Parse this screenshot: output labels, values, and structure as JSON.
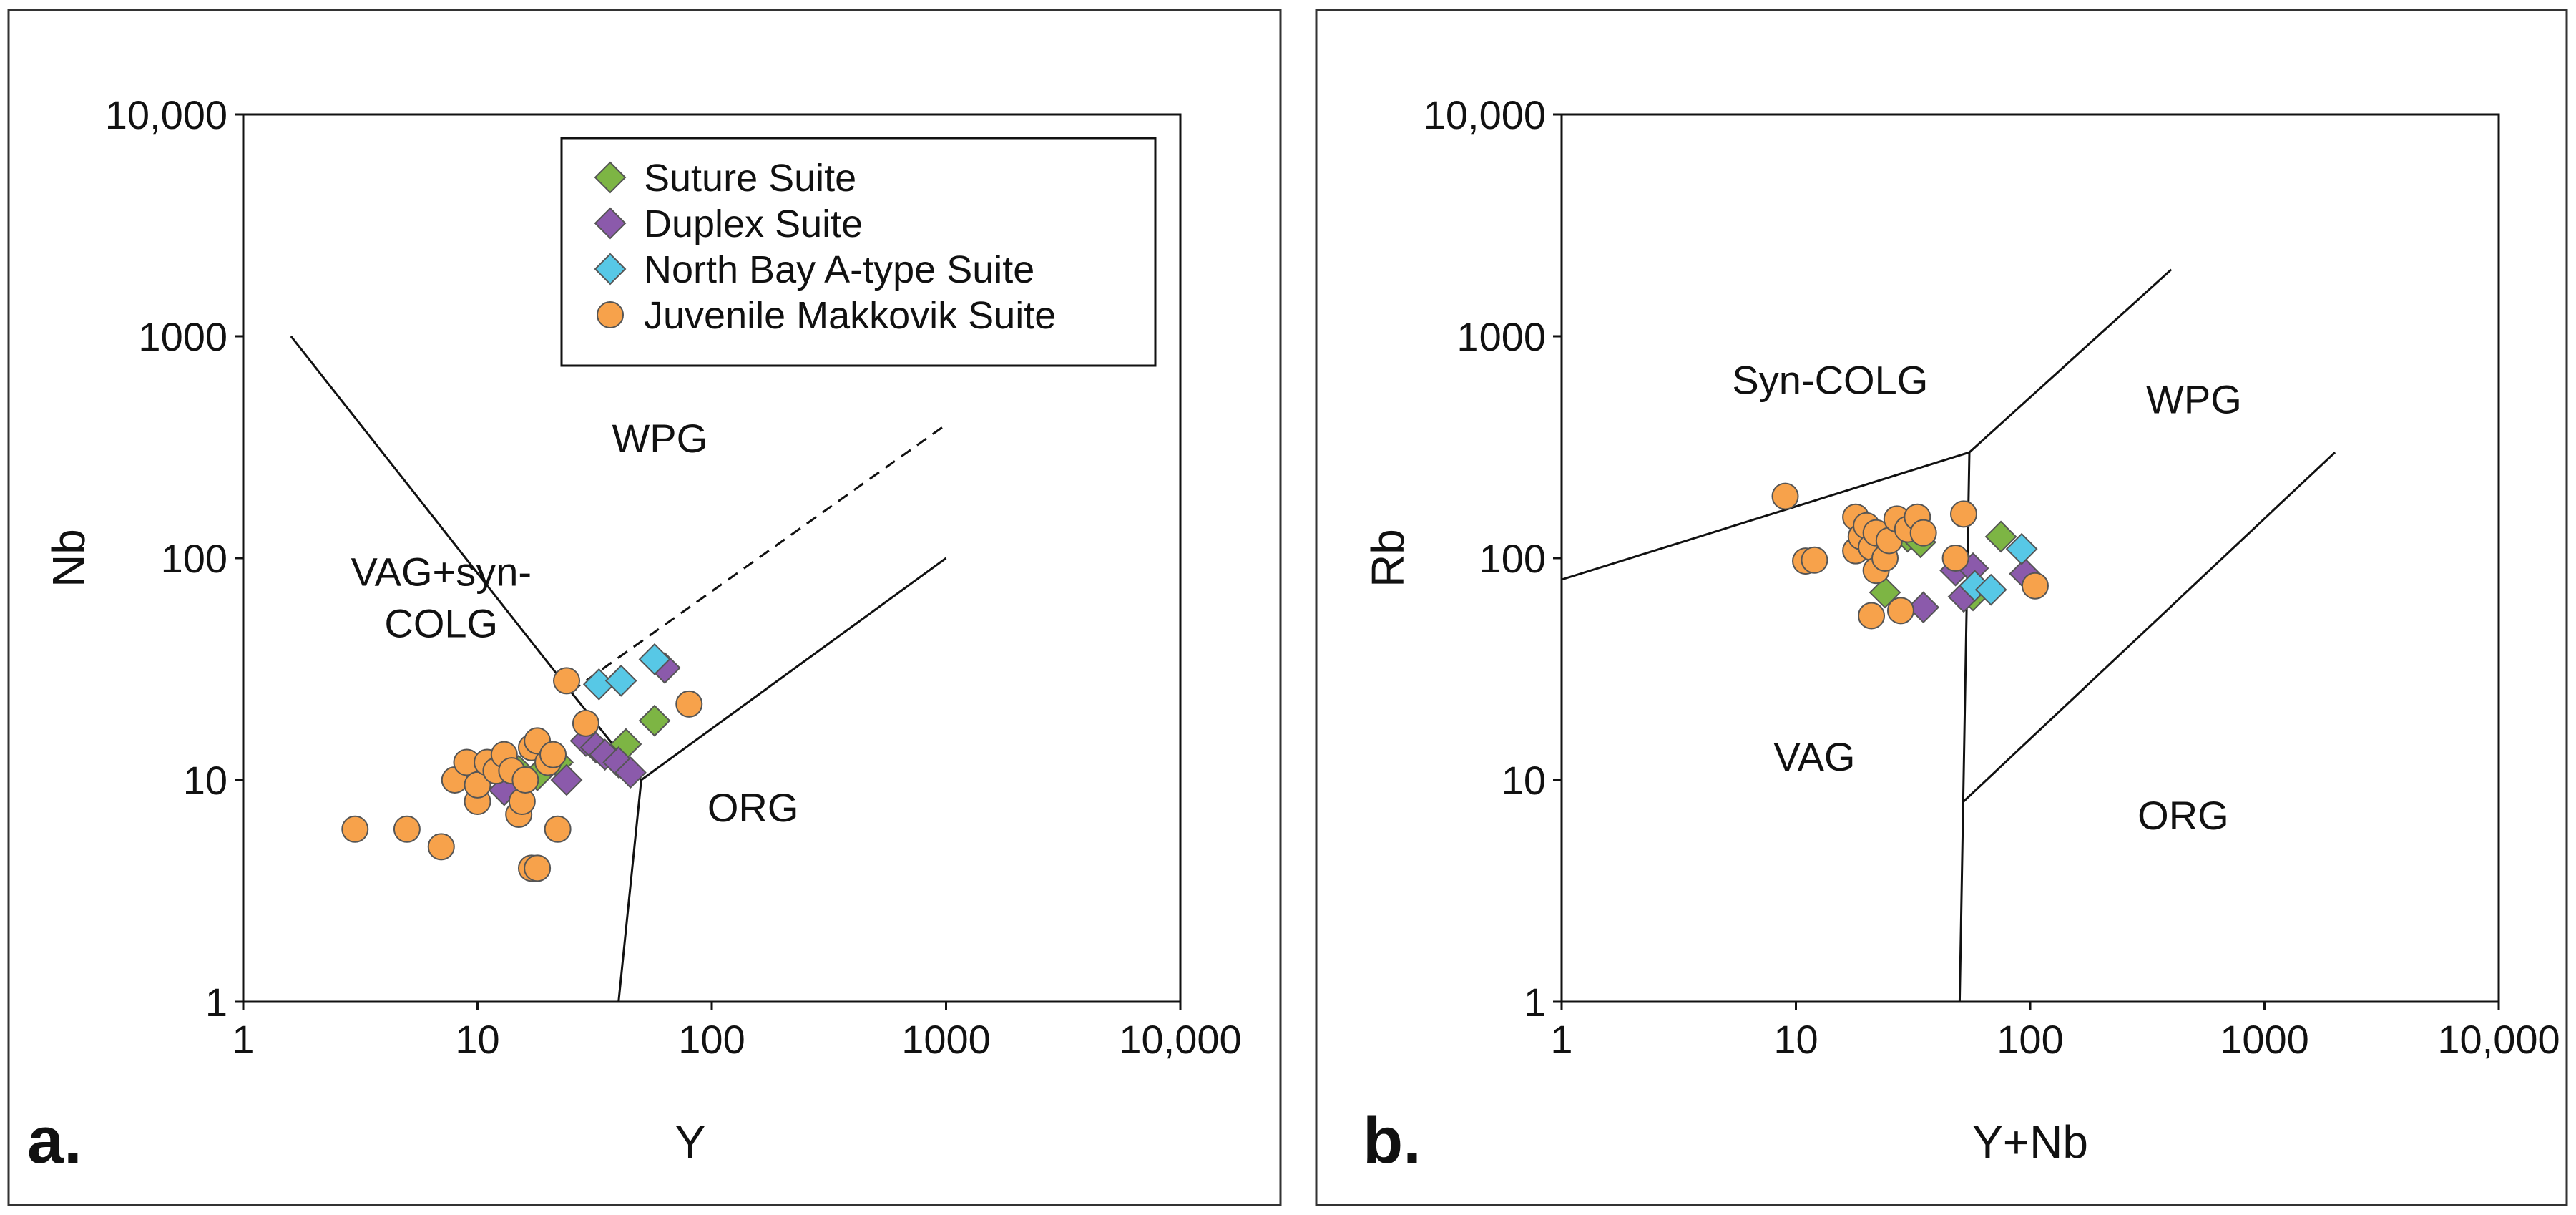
{
  "colors": {
    "suture": "#7db544",
    "duplex": "#8b5aab",
    "northbay": "#57c8e6",
    "juvenile": "#f7a24b"
  },
  "chart_data": [
    {
      "type": "scatter",
      "panel_label": "a.",
      "xlabel": "Y",
      "ylabel": "Nb",
      "xscale": "log",
      "yscale": "log",
      "xlim": [
        1,
        10000
      ],
      "ylim": [
        1,
        10000
      ],
      "x_tick_labels": [
        "1",
        "10",
        "100",
        "1000",
        "10,000"
      ],
      "y_tick_labels": [
        "1",
        "10",
        "100",
        "1000",
        "10,000"
      ],
      "legend": {
        "placement": "top-right",
        "entries": [
          {
            "name": "Suture Suite",
            "marker": "diamond",
            "color_key": "suture"
          },
          {
            "name": "Duplex Suite",
            "marker": "diamond",
            "color_key": "duplex"
          },
          {
            "name": "North Bay A-type Suite",
            "marker": "diamond",
            "color_key": "northbay"
          },
          {
            "name": "Juvenile Makkovik Suite",
            "marker": "circle",
            "color_key": "juvenile"
          }
        ]
      },
      "region_labels": [
        {
          "text": "WPG",
          "x": 60,
          "y": 300
        },
        {
          "text": "VAG+syn-",
          "x": 7,
          "y": 75
        },
        {
          "text": "COLG",
          "x": 7,
          "y": 44
        },
        {
          "text": "ORG",
          "x": 150,
          "y": 6.5
        }
      ],
      "boundaries": [
        {
          "style": "solid",
          "points": [
            [
              1.6,
              1000
            ],
            [
              25,
              25
            ],
            [
              50,
              10
            ],
            [
              40,
              1
            ]
          ]
        },
        {
          "style": "solid",
          "points": [
            [
              50,
              10
            ],
            [
              1000,
              100
            ]
          ]
        },
        {
          "style": "dashed",
          "points": [
            [
              25,
              25
            ],
            [
              1000,
              400
            ]
          ]
        }
      ],
      "series": [
        {
          "name": "Suture Suite",
          "marker": "diamond",
          "color_key": "suture",
          "points": [
            [
              15,
              11
            ],
            [
              18,
              10.5
            ],
            [
              22,
              12
            ],
            [
              43,
              14.5
            ],
            [
              57,
              18.5
            ]
          ]
        },
        {
          "name": "Duplex Suite",
          "marker": "diamond",
          "color_key": "duplex",
          "points": [
            [
              13,
              9
            ],
            [
              24,
              10
            ],
            [
              29,
              15
            ],
            [
              32,
              14
            ],
            [
              35,
              13
            ],
            [
              40,
              12
            ],
            [
              45,
              10.8
            ],
            [
              63,
              32
            ]
          ]
        },
        {
          "name": "North Bay A-type Suite",
          "marker": "diamond",
          "color_key": "northbay",
          "points": [
            [
              33,
              27
            ],
            [
              41,
              28
            ],
            [
              57,
              35
            ]
          ]
        },
        {
          "name": "Juvenile Makkovik Suite",
          "marker": "circle",
          "color_key": "juvenile",
          "points": [
            [
              3,
              6
            ],
            [
              5,
              6
            ],
            [
              7,
              5
            ],
            [
              8,
              10
            ],
            [
              9,
              12
            ],
            [
              10,
              8
            ],
            [
              10,
              9.5
            ],
            [
              11,
              12
            ],
            [
              12,
              11
            ],
            [
              13,
              13
            ],
            [
              14,
              11
            ],
            [
              15,
              7
            ],
            [
              15.5,
              8
            ],
            [
              16,
              10
            ],
            [
              17,
              14
            ],
            [
              18,
              15
            ],
            [
              17,
              4
            ],
            [
              18,
              4
            ],
            [
              20,
              12
            ],
            [
              21,
              13
            ],
            [
              22,
              6
            ],
            [
              24,
              28
            ],
            [
              29,
              18
            ],
            [
              80,
              22
            ]
          ]
        }
      ]
    },
    {
      "type": "scatter",
      "panel_label": "b.",
      "xlabel": "Y+Nb",
      "ylabel": "Rb",
      "xscale": "log",
      "yscale": "log",
      "xlim": [
        1,
        10000
      ],
      "ylim": [
        1,
        10000
      ],
      "x_tick_labels": [
        "1",
        "10",
        "100",
        "1000",
        "10,000"
      ],
      "y_tick_labels": [
        "1",
        "10",
        "100",
        "1000",
        "10,000"
      ],
      "region_labels": [
        {
          "text": "Syn-COLG",
          "x": 14,
          "y": 550
        },
        {
          "text": "WPG",
          "x": 500,
          "y": 450
        },
        {
          "text": "VAG",
          "x": 12,
          "y": 11
        },
        {
          "text": "ORG",
          "x": 450,
          "y": 6
        }
      ],
      "boundaries": [
        {
          "style": "solid",
          "points": [
            [
              1,
              80
            ],
            [
              55,
              300
            ],
            [
              50,
              1
            ]
          ]
        },
        {
          "style": "solid",
          "points": [
            [
              55,
              300
            ],
            [
              400,
              2000
            ]
          ]
        },
        {
          "style": "solid",
          "points": [
            [
              52,
              8
            ],
            [
              2000,
              300
            ]
          ]
        }
      ],
      "series": [
        {
          "name": "Suture Suite",
          "marker": "diamond",
          "color_key": "suture",
          "points": [
            [
              24,
              70
            ],
            [
              30,
              125
            ],
            [
              34,
              118
            ],
            [
              57,
              68
            ],
            [
              75,
              125
            ]
          ]
        },
        {
          "name": "Duplex Suite",
          "marker": "diamond",
          "color_key": "duplex",
          "points": [
            [
              35,
              60
            ],
            [
              48,
              88
            ],
            [
              52,
              67
            ],
            [
              57,
              90
            ],
            [
              95,
              85
            ]
          ]
        },
        {
          "name": "North Bay A-type Suite",
          "marker": "diamond",
          "color_key": "northbay",
          "points": [
            [
              58,
              75
            ],
            [
              68,
              72
            ],
            [
              92,
              110
            ]
          ]
        },
        {
          "name": "Juvenile Makkovik Suite",
          "marker": "circle",
          "color_key": "juvenile",
          "points": [
            [
              9,
              190
            ],
            [
              11,
              97
            ],
            [
              12,
              98
            ],
            [
              18,
              153
            ],
            [
              18,
              108
            ],
            [
              19,
              125
            ],
            [
              20,
              140
            ],
            [
              21,
              55
            ],
            [
              21,
              112
            ],
            [
              22,
              130
            ],
            [
              22,
              88
            ],
            [
              24,
              100
            ],
            [
              25,
              120
            ],
            [
              27,
              150
            ],
            [
              28,
              58
            ],
            [
              30,
              135
            ],
            [
              33,
              153
            ],
            [
              35,
              130
            ],
            [
              48,
              100
            ],
            [
              52,
              158
            ],
            [
              105,
              75
            ]
          ]
        }
      ]
    }
  ]
}
